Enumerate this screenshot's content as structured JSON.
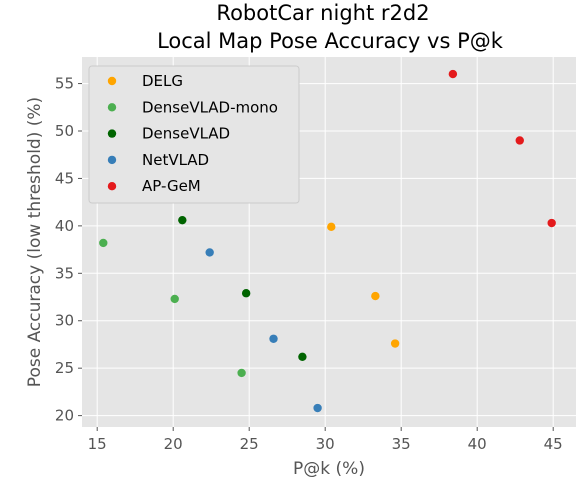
{
  "chart_data": {
    "type": "scatter",
    "title": "RobotCar night r2d2",
    "subtitle": "Local Map Pose Accuracy vs P@k",
    "xlabel": "P@k (%)",
    "ylabel": "Pose Accuracy (low threshold) (%)",
    "xlim": [
      14.0,
      46.5
    ],
    "ylim": [
      18.8,
      57.8
    ],
    "xticks": [
      15,
      20,
      25,
      30,
      35,
      40,
      45
    ],
    "yticks": [
      20,
      25,
      30,
      35,
      40,
      45,
      50,
      55
    ],
    "grid": true,
    "legend_position": "top-left",
    "series": [
      {
        "name": "DELG",
        "color": "#ffa500",
        "points": [
          [
            30.4,
            39.9
          ],
          [
            33.3,
            32.6
          ],
          [
            34.6,
            27.6
          ]
        ]
      },
      {
        "name": "DenseVLAD-mono",
        "color": "#4caf50",
        "points": [
          [
            15.4,
            38.2
          ],
          [
            20.1,
            32.3
          ],
          [
            24.5,
            24.5
          ]
        ]
      },
      {
        "name": "DenseVLAD",
        "color": "#006400",
        "points": [
          [
            20.6,
            40.6
          ],
          [
            24.8,
            32.9
          ],
          [
            28.5,
            26.2
          ]
        ]
      },
      {
        "name": "NetVLAD",
        "color": "#377eb8",
        "points": [
          [
            22.4,
            37.2
          ],
          [
            26.6,
            28.1
          ],
          [
            29.5,
            20.8
          ]
        ]
      },
      {
        "name": "AP-GeM",
        "color": "#e41a1c",
        "points": [
          [
            38.4,
            56.0
          ],
          [
            42.8,
            49.0
          ],
          [
            44.9,
            40.3
          ]
        ]
      }
    ]
  }
}
